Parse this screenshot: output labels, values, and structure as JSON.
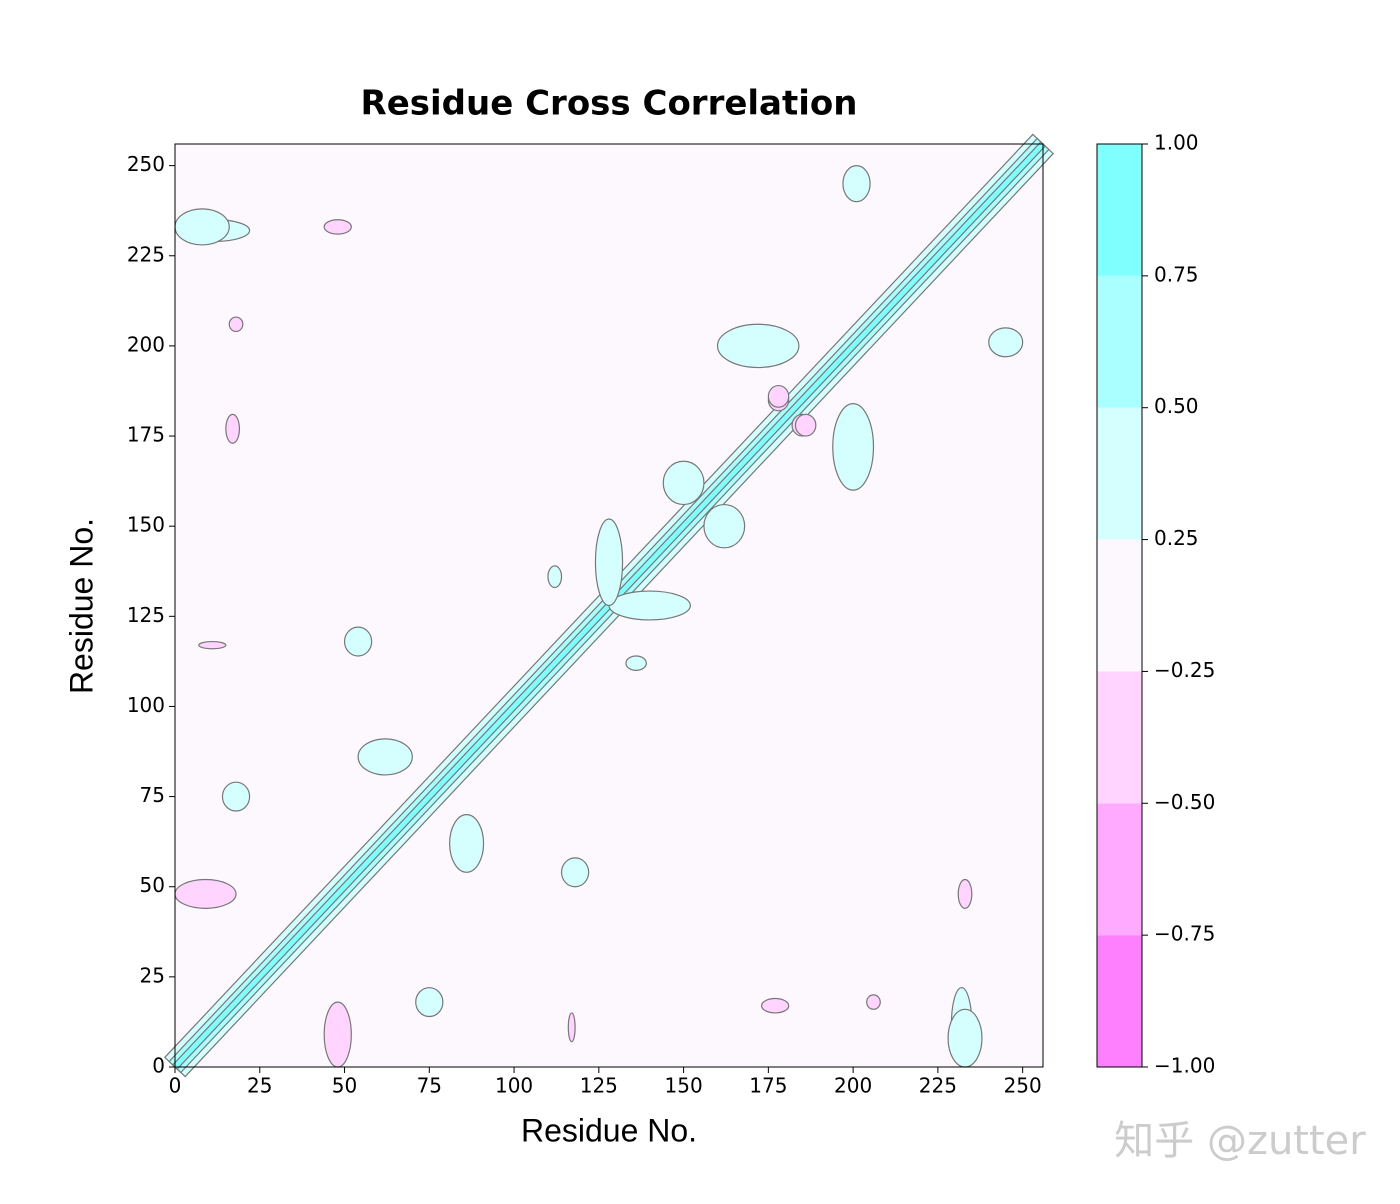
{
  "chart_data": {
    "type": "contour",
    "title": "Residue Cross Correlation",
    "x_label": "Residue No.",
    "y_label": "Residue No.",
    "xlim": [
      0,
      256
    ],
    "ylim": [
      0,
      256
    ],
    "xticks": [
      0,
      25,
      50,
      75,
      100,
      125,
      150,
      175,
      200,
      225,
      250
    ],
    "yticks": [
      0,
      25,
      50,
      75,
      100,
      125,
      150,
      175,
      200,
      225,
      250
    ],
    "levels": [
      {
        "value": -1,
        "label": "−1.00"
      },
      {
        "value": -0.75,
        "label": "−0.75"
      },
      {
        "value": -0.5,
        "label": "−0.50"
      },
      {
        "value": -0.25,
        "label": "−0.25"
      },
      {
        "value": 0.25,
        "label": "0.25"
      },
      {
        "value": 0.5,
        "label": "0.50"
      },
      {
        "value": 0.75,
        "label": "0.75"
      },
      {
        "value": 1,
        "label": "1.00"
      }
    ],
    "colors": [
      "#ff80ff",
      "#ffaaff",
      "#ffd5ff",
      "#fdf8fd",
      "#d5ffff",
      "#aaffff",
      "#80ffff"
    ],
    "symmetric": true,
    "diagonal_value": 1,
    "features": [
      {
        "x": 9,
        "y": 48,
        "w": 9,
        "h": 4,
        "value": -0.4
      },
      {
        "x": 18,
        "y": 75,
        "w": 4,
        "h": 4,
        "value": 0.4
      },
      {
        "x": 17,
        "y": 177,
        "w": 2,
        "h": 4,
        "value": -0.4
      },
      {
        "x": 12,
        "y": 232,
        "w": 10,
        "h": 3,
        "value": 0.4
      },
      {
        "x": 62,
        "y": 86,
        "w": 8,
        "h": 5,
        "value": 0.4
      },
      {
        "x": 54,
        "y": 118,
        "w": 4,
        "h": 4,
        "value": 0.4
      },
      {
        "x": 48,
        "y": 233,
        "w": 4,
        "h": 2,
        "value": -0.4
      },
      {
        "x": 233,
        "y": 8,
        "w": 5,
        "h": 8,
        "value": 0.4
      },
      {
        "x": 172,
        "y": 200,
        "w": 12,
        "h": 6,
        "value": 0.4
      },
      {
        "x": 245,
        "y": 201,
        "w": 5,
        "h": 4,
        "value": 0.4
      },
      {
        "x": 178,
        "y": 185,
        "w": 3,
        "h": 3,
        "value": -0.4
      },
      {
        "x": 186,
        "y": 178,
        "w": 3,
        "h": 3,
        "value": -0.4
      },
      {
        "x": 150,
        "y": 162,
        "w": 6,
        "h": 6,
        "value": 0.4
      },
      {
        "x": 140,
        "y": 128,
        "w": 12,
        "h": 4,
        "value": 0.4
      },
      {
        "x": 117,
        "y": 11,
        "w": 1,
        "h": 4,
        "value": -0.4
      },
      {
        "x": 206,
        "y": 18,
        "w": 2,
        "h": 2,
        "value": -0.4
      },
      {
        "x": 136,
        "y": 112,
        "w": 3,
        "h": 2,
        "value": 0.4
      }
    ],
    "watermark": "知乎 @zutter"
  }
}
